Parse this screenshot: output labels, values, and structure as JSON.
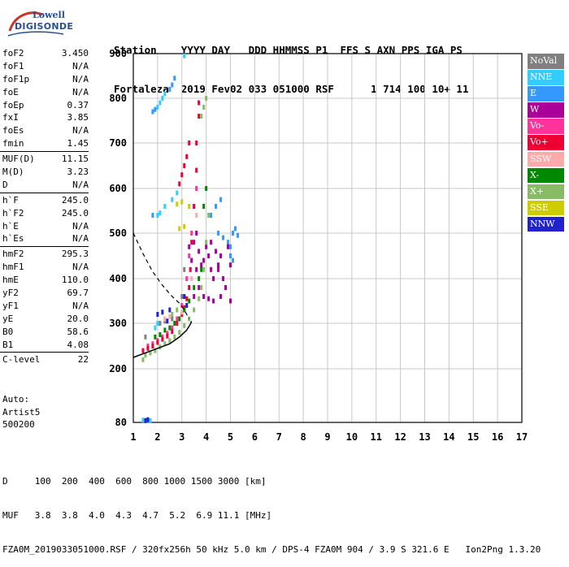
{
  "logo": {
    "line1": "Lowell",
    "line2": "DIGISONDE"
  },
  "header": {
    "labels": "Station    YYYY DAY   DDD HHMMSS P1  FFS S AXN PPS IGA PS",
    "values": "Fortaleza  2019 Fev02 033 051000 RSF      1 714 100 10+ 11"
  },
  "params": [
    {
      "k": "foF2",
      "v": "3.450"
    },
    {
      "k": "foF1",
      "v": "N/A"
    },
    {
      "k": "foF1p",
      "v": "N/A"
    },
    {
      "k": "foE",
      "v": "N/A"
    },
    {
      "k": "foEp",
      "v": "0.37"
    },
    {
      "k": "fxI",
      "v": "3.85"
    },
    {
      "k": "foEs",
      "v": "N/A"
    },
    {
      "k": "fmin",
      "v": "1.45"
    },
    {
      "k": "MUF(D)",
      "v": "11.15"
    },
    {
      "k": "M(D)",
      "v": "3.23"
    },
    {
      "k": "D",
      "v": "N/A"
    },
    {
      "k": "h`F",
      "v": "245.0"
    },
    {
      "k": "h`F2",
      "v": "245.0"
    },
    {
      "k": "h`E",
      "v": "N/A"
    },
    {
      "k": "h`Es",
      "v": "N/A"
    },
    {
      "k": "hmF2",
      "v": "295.3"
    },
    {
      "k": "hmF1",
      "v": "N/A"
    },
    {
      "k": "hmE",
      "v": "110.0"
    },
    {
      "k": "yF2",
      "v": "69.7"
    },
    {
      "k": "yF1",
      "v": "N/A"
    },
    {
      "k": "yE",
      "v": "20.0"
    },
    {
      "k": "B0",
      "v": "58.6"
    },
    {
      "k": "B1",
      "v": "4.08"
    },
    {
      "k": "C-level",
      "v": "22"
    }
  ],
  "auto": {
    "line1": "Auto:",
    "line2": "Artist5",
    "line3": "500200"
  },
  "footer": {
    "d_row": "D     100  200  400  600  800 1000 1500 3000 [km]",
    "muf_row": "MUF   3.8  3.8  4.0  4.3  4.7  5.2  6.9 11.1 [MHz]",
    "info": "FZA0M_2019033051000.RSF / 320fx256h 50 kHz 5.0 km / DPS-4 FZA0M 904 / 3.9 S 321.6 E   Ion2Png 1.3.20"
  },
  "legend": [
    {
      "label": "NoVal",
      "bg": "#808080",
      "fg": "#ffffff"
    },
    {
      "label": "NNE",
      "bg": "#33ccff",
      "fg": "#ffffff"
    },
    {
      "label": "E",
      "bg": "#3399ff",
      "fg": "#ffffff"
    },
    {
      "label": "W",
      "bg": "#aa0099",
      "fg": "#ffffff"
    },
    {
      "label": "Vo-",
      "bg": "#ff3399",
      "fg": "#ffffff"
    },
    {
      "label": "Vo+",
      "bg": "#ee0033",
      "fg": "#ffffff"
    },
    {
      "label": "SSW",
      "bg": "#ffaaaa",
      "fg": "#ffffff"
    },
    {
      "label": "X-",
      "bg": "#008800",
      "fg": "#ffffff"
    },
    {
      "label": "X+",
      "bg": "#88bb66",
      "fg": "#ffffff"
    },
    {
      "label": "SSE",
      "bg": "#cccc00",
      "fg": "#ffffff"
    },
    {
      "label": "NNW",
      "bg": "#2222cc",
      "fg": "#ffffff"
    }
  ],
  "chart_data": {
    "type": "scatter",
    "xlim": [
      1,
      17
    ],
    "ylim": [
      80,
      900
    ],
    "x_ticks": [
      "1",
      "2",
      "3",
      "4",
      "5",
      "6",
      "7",
      "8",
      "9",
      "10",
      "11",
      "12",
      "13",
      "14",
      "15",
      "16",
      "17"
    ],
    "y_ticks": [
      "80",
      "200",
      "300",
      "400",
      "500",
      "600",
      "700",
      "800",
      "900"
    ],
    "y_tick_values": [
      80,
      200,
      300,
      400,
      500,
      600,
      700,
      800,
      900
    ],
    "grid": true,
    "series": [
      {
        "name": "NoVal",
        "color": "#808080",
        "points": [
          [
            2.1,
            300
          ],
          [
            2.3,
            305
          ],
          [
            2.6,
            310
          ],
          [
            3.0,
            360
          ],
          [
            3.1,
            420
          ],
          [
            1.5,
            270
          ]
        ]
      },
      {
        "name": "NNE",
        "color": "#33ccff",
        "points": [
          [
            2.0,
            780
          ],
          [
            2.1,
            790
          ],
          [
            2.2,
            800
          ],
          [
            2.3,
            810
          ],
          [
            2.0,
            540
          ],
          [
            2.1,
            545
          ],
          [
            2.3,
            560
          ],
          [
            2.6,
            575
          ],
          [
            2.8,
            590
          ],
          [
            1.9,
            290
          ],
          [
            2.0,
            300
          ],
          [
            1.4,
            85
          ],
          [
            1.5,
            84
          ],
          [
            1.6,
            85
          ],
          [
            1.7,
            84
          ],
          [
            3.1,
            895
          ]
        ]
      },
      {
        "name": "E",
        "color": "#3399ff",
        "points": [
          [
            1.8,
            770
          ],
          [
            1.9,
            775
          ],
          [
            2.5,
            820
          ],
          [
            2.6,
            830
          ],
          [
            2.7,
            845
          ],
          [
            4.5,
            500
          ],
          [
            4.7,
            490
          ],
          [
            4.9,
            480
          ],
          [
            5.0,
            470
          ],
          [
            5.1,
            500
          ],
          [
            5.2,
            510
          ],
          [
            5.3,
            495
          ],
          [
            4.2,
            540
          ],
          [
            4.4,
            560
          ],
          [
            4.6,
            575
          ],
          [
            5.0,
            450
          ],
          [
            5.1,
            440
          ],
          [
            1.8,
            540
          ]
        ]
      },
      {
        "name": "W",
        "color": "#aa0099",
        "points": [
          [
            3.3,
            470
          ],
          [
            3.4,
            440
          ],
          [
            3.5,
            480
          ],
          [
            3.6,
            500
          ],
          [
            3.7,
            460
          ],
          [
            3.8,
            430
          ],
          [
            3.9,
            440
          ],
          [
            4.0,
            470
          ],
          [
            4.1,
            450
          ],
          [
            4.2,
            480
          ],
          [
            4.3,
            400
          ],
          [
            4.4,
            460
          ],
          [
            4.5,
            420
          ],
          [
            4.6,
            450
          ],
          [
            4.7,
            400
          ],
          [
            4.8,
            380
          ],
          [
            4.9,
            470
          ],
          [
            5.0,
            430
          ],
          [
            3.5,
            360
          ],
          [
            3.7,
            380
          ],
          [
            3.9,
            360
          ],
          [
            4.1,
            355
          ],
          [
            4.3,
            350
          ],
          [
            4.6,
            360
          ],
          [
            5.0,
            350
          ],
          [
            4.5,
            430
          ],
          [
            4.2,
            420
          ],
          [
            3.6,
            420
          ]
        ]
      },
      {
        "name": "Vo-",
        "color": "#ff3399",
        "points": [
          [
            1.6,
            250
          ],
          [
            1.8,
            255
          ],
          [
            2.0,
            262
          ],
          [
            2.2,
            270
          ],
          [
            2.4,
            278
          ],
          [
            2.6,
            290
          ],
          [
            2.8,
            310
          ],
          [
            3.0,
            340
          ],
          [
            3.1,
            360
          ],
          [
            3.2,
            400
          ],
          [
            3.3,
            450
          ],
          [
            3.4,
            500
          ],
          [
            3.5,
            560
          ],
          [
            3.6,
            600
          ]
        ]
      },
      {
        "name": "Vo+",
        "color": "#ee0033",
        "points": [
          [
            1.4,
            240
          ],
          [
            1.6,
            245
          ],
          [
            1.8,
            250
          ],
          [
            2.0,
            258
          ],
          [
            2.2,
            265
          ],
          [
            2.4,
            272
          ],
          [
            2.6,
            282
          ],
          [
            2.8,
            300
          ],
          [
            3.0,
            320
          ],
          [
            3.1,
            335
          ],
          [
            3.2,
            355
          ],
          [
            3.3,
            380
          ],
          [
            3.35,
            420
          ],
          [
            3.4,
            480
          ],
          [
            3.5,
            560
          ],
          [
            3.6,
            640
          ],
          [
            3.6,
            700
          ],
          [
            3.7,
            760
          ],
          [
            3.7,
            790
          ],
          [
            2.9,
            610
          ],
          [
            3.0,
            630
          ],
          [
            3.1,
            650
          ],
          [
            3.2,
            670
          ],
          [
            3.3,
            700
          ]
        ]
      },
      {
        "name": "SSW",
        "color": "#ffaaaa",
        "points": [
          [
            2.3,
            310
          ],
          [
            2.5,
            315
          ],
          [
            3.0,
            325
          ],
          [
            3.4,
            400
          ],
          [
            3.6,
            540
          ]
        ]
      },
      {
        "name": "X-",
        "color": "#008800",
        "points": [
          [
            1.9,
            270
          ],
          [
            2.1,
            275
          ],
          [
            2.3,
            285
          ],
          [
            2.5,
            290
          ],
          [
            2.7,
            300
          ],
          [
            2.9,
            310
          ],
          [
            3.1,
            330
          ],
          [
            3.3,
            350
          ],
          [
            3.5,
            380
          ],
          [
            3.7,
            400
          ],
          [
            3.8,
            420
          ],
          [
            3.9,
            560
          ],
          [
            4.0,
            600
          ]
        ]
      },
      {
        "name": "X+",
        "color": "#88bb66",
        "points": [
          [
            1.5,
            230
          ],
          [
            1.7,
            235
          ],
          [
            1.9,
            240
          ],
          [
            2.1,
            248
          ],
          [
            2.3,
            255
          ],
          [
            2.5,
            262
          ],
          [
            2.7,
            270
          ],
          [
            2.9,
            280
          ],
          [
            3.1,
            295
          ],
          [
            3.3,
            310
          ],
          [
            3.5,
            330
          ],
          [
            3.7,
            355
          ],
          [
            3.8,
            380
          ],
          [
            3.9,
            420
          ],
          [
            4.0,
            480
          ],
          [
            4.1,
            540
          ],
          [
            4.0,
            800
          ],
          [
            3.9,
            780
          ],
          [
            3.8,
            760
          ],
          [
            1.4,
            220
          ],
          [
            2.6,
            320
          ],
          [
            2.8,
            330
          ]
        ]
      },
      {
        "name": "SSE",
        "color": "#cccc00",
        "points": [
          [
            2.9,
            510
          ],
          [
            3.1,
            515
          ],
          [
            3.0,
            570
          ],
          [
            2.8,
            565
          ],
          [
            3.3,
            560
          ]
        ]
      },
      {
        "name": "NNW",
        "color": "#2222cc",
        "points": [
          [
            2.0,
            320
          ],
          [
            2.2,
            325
          ],
          [
            2.5,
            330
          ],
          [
            3.1,
            360
          ],
          [
            3.2,
            340
          ],
          [
            2.4,
            305
          ],
          [
            1.5,
            84
          ],
          [
            1.6,
            86
          ]
        ]
      }
    ],
    "profile": [
      [
        1.0,
        225
      ],
      [
        1.5,
        235
      ],
      [
        2.0,
        245
      ],
      [
        2.5,
        255
      ],
      [
        2.9,
        270
      ],
      [
        3.2,
        285
      ],
      [
        3.35,
        298
      ],
      [
        3.4,
        305
      ]
    ],
    "dashed_profile": [
      [
        1.0,
        500
      ],
      [
        1.4,
        455
      ],
      [
        1.8,
        415
      ],
      [
        2.2,
        385
      ],
      [
        2.6,
        360
      ],
      [
        2.9,
        345
      ],
      [
        3.1,
        330
      ],
      [
        3.2,
        320
      ],
      [
        3.3,
        310
      ]
    ]
  }
}
